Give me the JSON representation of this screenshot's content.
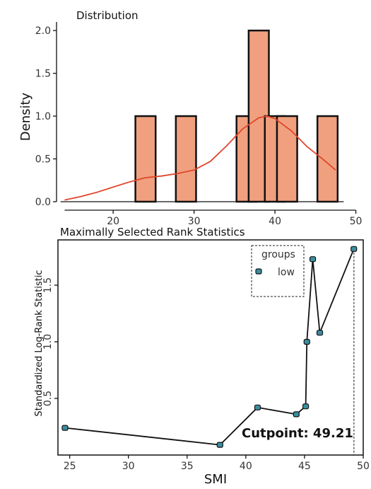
{
  "chart_data": [
    {
      "type": "bar",
      "title": "Distribution",
      "xlabel": "",
      "ylabel": "Density",
      "xlim": [
        13,
        51
      ],
      "ylim": [
        0,
        2.15
      ],
      "x_ticks": [
        20,
        30,
        40,
        50
      ],
      "y_ticks": [
        "0.0",
        "0.5",
        "1.0",
        "1.5",
        "2.0"
      ],
      "bar_width": 2.5,
      "bars": [
        {
          "x": 24.0,
          "value": 1.0
        },
        {
          "x": 29.0,
          "value": 1.0
        },
        {
          "x": 36.5,
          "value": 1.0
        },
        {
          "x": 38.0,
          "value": 2.0
        },
        {
          "x": 40.0,
          "value": 1.0
        },
        {
          "x": 41.5,
          "value": 1.0
        },
        {
          "x": 46.5,
          "value": 1.0
        }
      ],
      "density_curve": {
        "color": "#e0462c",
        "x": [
          14,
          16,
          18,
          20,
          22,
          24,
          26,
          28,
          30,
          32,
          34,
          36,
          38,
          39,
          40,
          42,
          44,
          46,
          47.5
        ],
        "y": [
          0.02,
          0.06,
          0.11,
          0.17,
          0.23,
          0.28,
          0.3,
          0.33,
          0.37,
          0.47,
          0.65,
          0.85,
          0.98,
          1.0,
          0.97,
          0.83,
          0.64,
          0.49,
          0.37
        ]
      },
      "bar_fill": "#f0a07e",
      "bar_stroke": "#111111"
    },
    {
      "type": "line",
      "title": "Maximally Selected Rank Statistics",
      "xlabel": "SMI",
      "ylabel": "Standardized Log-Rank Statistic",
      "xlim": [
        24,
        50
      ],
      "ylim": [
        0,
        1.9
      ],
      "x_ticks": [
        25,
        30,
        35,
        40,
        45,
        50
      ],
      "y_ticks": [
        "0.5",
        "1.0",
        "1.5"
      ],
      "series": [
        {
          "name": "low",
          "x": [
            24.6,
            37.8,
            41.0,
            44.3,
            45.1,
            45.2,
            45.7,
            46.3,
            49.2
          ],
          "y": [
            0.24,
            0.09,
            0.42,
            0.36,
            0.43,
            1.0,
            1.73,
            1.08,
            1.82
          ]
        }
      ],
      "legend": {
        "title": "groups",
        "placement": "top-right"
      },
      "cutpoint": {
        "value": 49.21,
        "label": "Cutpoint: 49.21"
      },
      "point_fill": "#3b8ea0"
    }
  ]
}
